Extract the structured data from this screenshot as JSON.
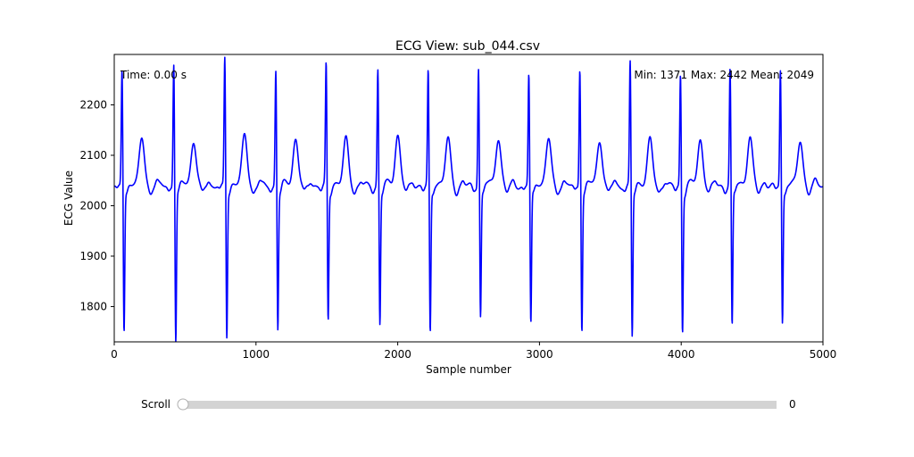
{
  "window": {
    "title": "ECG View: sub_044.csv"
  },
  "chart_data": {
    "type": "line",
    "title": "ECG View: sub_044.csv",
    "xlabel": "Sample number",
    "ylabel": "ECG Value",
    "xlim": [
      0,
      5000
    ],
    "ylim": [
      1730,
      2300
    ],
    "xticks": [
      0,
      1000,
      2000,
      3000,
      4000,
      5000
    ],
    "yticks": [
      1800,
      1900,
      2000,
      2100,
      2200
    ],
    "grid": false,
    "line_color": "#0000ff",
    "beats": {
      "r_peak_samples": [
        55,
        420,
        780,
        1140,
        1495,
        1860,
        2215,
        2570,
        2925,
        3285,
        3640,
        3995,
        4345,
        4700
      ],
      "r_peak_values": [
        2275,
        2290,
        2300,
        2275,
        2285,
        2275,
        2270,
        2280,
        2265,
        2280,
        2290,
        2265,
        2275,
        2275
      ],
      "s_trough_values": [
        1750,
        1730,
        1740,
        1757,
        1772,
        1765,
        1745,
        1780,
        1765,
        1755,
        1740,
        1752,
        1758,
        1768
      ],
      "t_wave_peak_values": [
        2133,
        2128,
        2140,
        2133,
        2132,
        2140,
        2132,
        2135,
        2132,
        2130,
        2132,
        2130,
        2135,
        2128
      ],
      "baseline": 2040
    },
    "annotations": {
      "time": "Time: 0.00 s",
      "stats": "Min: 1371  Max: 2442  Mean: 2049"
    }
  },
  "scroll": {
    "label": "Scroll",
    "value": 0,
    "value_text": "0",
    "min": 0,
    "max": 1,
    "track_color": "#d3d3d3"
  }
}
